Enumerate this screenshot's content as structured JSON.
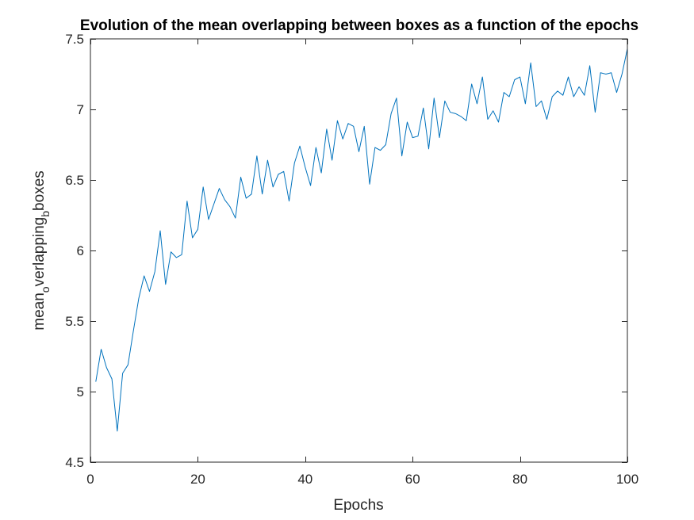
{
  "chart_data": {
    "type": "line",
    "title": "Evolution of the mean overlapping between boxes as a function of the epochs",
    "xlabel": "Epochs",
    "ylabel": {
      "part1": "mean",
      "sub1": "o",
      "part2": "verlapping",
      "sub2": "b",
      "part3": "boxes"
    },
    "xlim": [
      0,
      100
    ],
    "ylim": [
      4.5,
      7.5
    ],
    "xticks": [
      0,
      20,
      40,
      60,
      80,
      100
    ],
    "xtick_labels": [
      "0",
      "20",
      "40",
      "60",
      "80",
      "100"
    ],
    "yticks": [
      4.5,
      5,
      5.5,
      6,
      6.5,
      7,
      7.5
    ],
    "ytick_labels": [
      "4.5",
      "5",
      "5.5",
      "6",
      "6.5",
      "7",
      "7.5"
    ],
    "grid": false,
    "line_color": "#0072BD",
    "series": [
      {
        "x": [
          1,
          2,
          3,
          4,
          5,
          6,
          7,
          8,
          9,
          10,
          11,
          12,
          13,
          14,
          15,
          16,
          17,
          18,
          19,
          20,
          21,
          22,
          23,
          24,
          25,
          26,
          27,
          28,
          29,
          30,
          31,
          32,
          33,
          34,
          35,
          36,
          37,
          38,
          39,
          40,
          41,
          42,
          43,
          44,
          45,
          46,
          47,
          48,
          49,
          50,
          51,
          52,
          53,
          54,
          55,
          56,
          57,
          58,
          59,
          60,
          61,
          62,
          63,
          64,
          65,
          66,
          67,
          68,
          69,
          70,
          71,
          72,
          73,
          74,
          75,
          76,
          77,
          78,
          79,
          80,
          81,
          82,
          83,
          84,
          85,
          86,
          87,
          88,
          89,
          90,
          91,
          92,
          93,
          94,
          95,
          96,
          97,
          98,
          99,
          100
        ],
        "values": [
          5.07,
          5.3,
          5.17,
          5.09,
          4.72,
          5.13,
          5.19,
          5.43,
          5.66,
          5.82,
          5.71,
          5.85,
          6.14,
          5.76,
          5.99,
          5.95,
          5.97,
          6.35,
          6.09,
          6.15,
          6.45,
          6.22,
          6.33,
          6.44,
          6.36,
          6.31,
          6.23,
          6.52,
          6.37,
          6.4,
          6.67,
          6.4,
          6.64,
          6.45,
          6.54,
          6.56,
          6.35,
          6.62,
          6.74,
          6.59,
          6.46,
          6.73,
          6.55,
          6.86,
          6.64,
          6.92,
          6.79,
          6.9,
          6.88,
          6.7,
          6.88,
          6.47,
          6.73,
          6.71,
          6.75,
          6.97,
          7.08,
          6.67,
          6.91,
          6.8,
          6.81,
          7.01,
          6.72,
          7.08,
          6.8,
          7.06,
          6.98,
          6.97,
          6.95,
          6.92,
          7.18,
          7.04,
          7.23,
          6.93,
          6.99,
          6.91,
          7.12,
          7.09,
          7.21,
          7.23,
          7.04,
          7.33,
          7.02,
          7.06,
          6.93,
          7.09,
          7.13,
          7.1,
          7.23,
          7.09,
          7.16,
          7.1,
          7.31,
          6.98,
          7.26,
          7.25,
          7.26,
          7.12,
          7.25,
          7.43
        ]
      }
    ]
  }
}
